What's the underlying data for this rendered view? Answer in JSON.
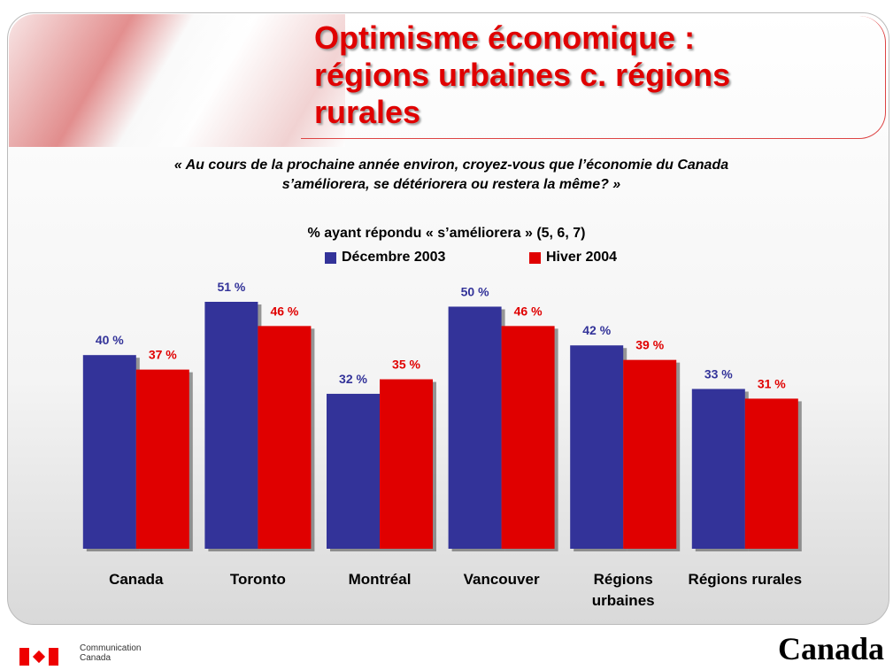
{
  "chart_data": {
    "type": "bar",
    "title": "Optimisme économique : régions urbaines c. régions rurales",
    "subtitle": "« Au cours de la prochaine année environ, croyez-vous que l’économie du Canada s’améliorera, se détériorera ou restera la même? »",
    "chart_title": "% ayant répondu « s’améliorera » (5, 6, 7)",
    "categories": [
      "Canada",
      "Toronto",
      "Montréal",
      "Vancouver",
      "Régions urbaines",
      "Régions rurales"
    ],
    "series": [
      {
        "name": "Décembre 2003",
        "color": "#333399",
        "values": [
          40,
          51,
          32,
          50,
          42,
          33
        ],
        "value_labels": [
          "40 %",
          "51 %",
          "32 %",
          "50 %",
          "42 %",
          "33 %"
        ]
      },
      {
        "name": "Hiver 2004",
        "color": "#e00000",
        "values": [
          37,
          46,
          35,
          46,
          39,
          31
        ],
        "value_labels": [
          "37 %",
          "46 %",
          "35 %",
          "46 %",
          "39 %",
          "31 %"
        ]
      }
    ]
  },
  "footer": {
    "department": "Communication Canada",
    "wordmark": "Canada"
  }
}
